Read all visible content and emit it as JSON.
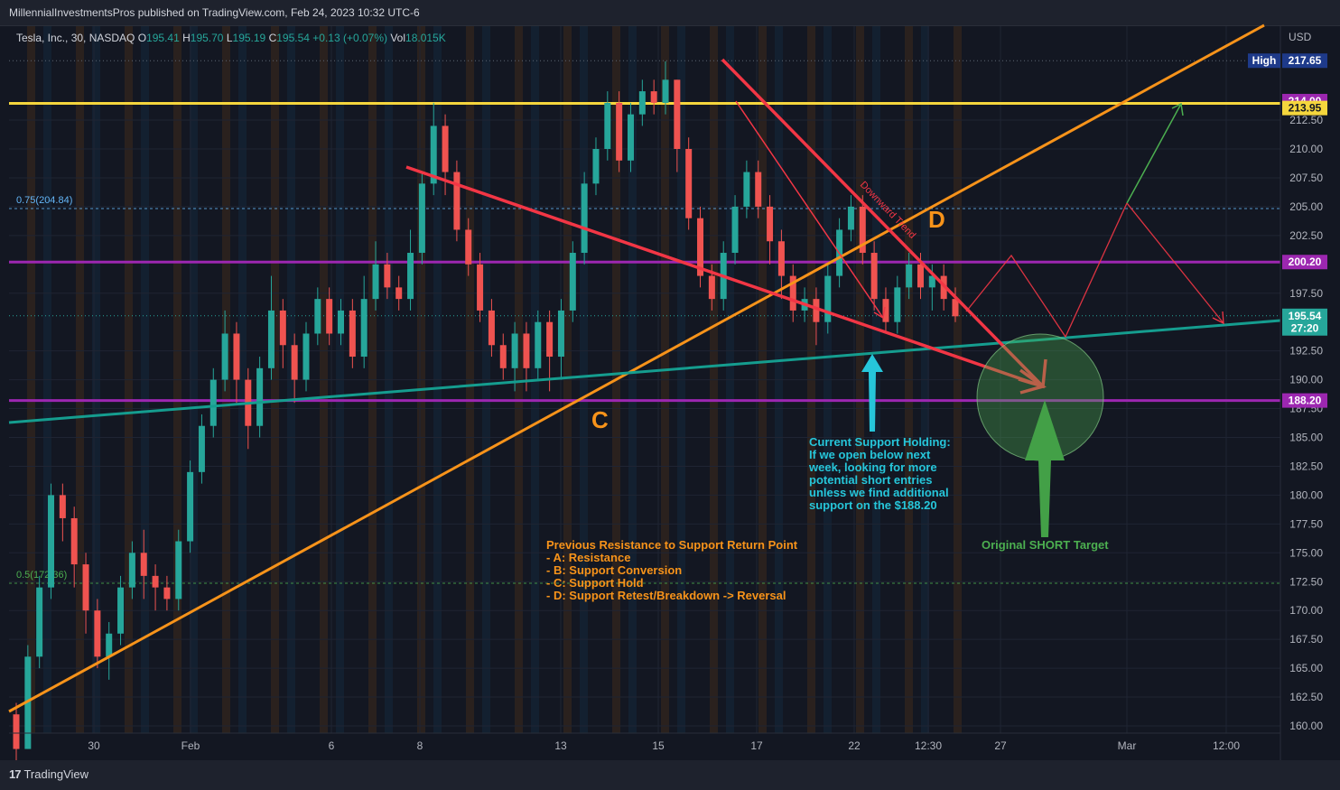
{
  "header": {
    "published": "MillennialInvestmentsPros published on TradingView.com, Feb 24, 2023 10:32 UTC-6"
  },
  "footer": {
    "brand": "TradingView"
  },
  "colors": {
    "background": "#131722",
    "up": "#26a69a",
    "down": "#ef5350",
    "resistance_yellow": "#f5d63d",
    "support_purple": "#9c27b0",
    "trend_orange": "#f7931a",
    "downtrend_red": "#f23645",
    "teal_support": "#159d8f",
    "target_green": "#4caf50",
    "fib_blue": "#64b5f6"
  },
  "chart_data": {
    "type": "candlestick",
    "symbol_line": {
      "name": "Tesla, Inc., 30, NASDAQ",
      "o_label": "O",
      "o": "195.41",
      "h_label": "H",
      "h": "195.70",
      "l_label": "L",
      "l": "195.19",
      "c_label": "C",
      "c": "195.54",
      "change": "+0.13 (+0.07%)",
      "vol_label": "Vol",
      "vol": "18.015K"
    },
    "currency": "USD",
    "y_range": [
      159.5,
      220.5
    ],
    "y_ticks": [
      212.5,
      210.0,
      207.5,
      205.0,
      202.5,
      197.5,
      192.5,
      190.0,
      187.5,
      185.0,
      182.5,
      180.0,
      177.5,
      175.0,
      172.5,
      170.0,
      167.5,
      165.0,
      162.5,
      160.0
    ],
    "x_ticks": [
      "30",
      "Feb",
      "6",
      "8",
      "13",
      "15",
      "17",
      "22",
      "12:30",
      "27",
      "Mar",
      "12:00"
    ],
    "price_tags": [
      {
        "label": "High",
        "value": "217.65",
        "price": 217.65,
        "bg": "#1e3a8a",
        "fg": "#ffffff"
      },
      {
        "value": "214.00",
        "price": 214.15,
        "bg": "#9c27b0",
        "fg": "#ffffff"
      },
      {
        "value": "213.95",
        "price": 213.55,
        "bg": "#f5d63d",
        "fg": "#131722"
      },
      {
        "value": "200.20",
        "price": 200.2,
        "bg": "#9c27b0",
        "fg": "#ffffff"
      },
      {
        "value": "195.54",
        "price": 195.54,
        "bg": "#26a69a",
        "fg": "#ffffff"
      },
      {
        "value": "27:20",
        "price": 194.45,
        "bg": "#26a69a",
        "fg": "#ffffff"
      },
      {
        "value": "188.20",
        "price": 188.2,
        "bg": "#9c27b0",
        "fg": "#ffffff"
      }
    ],
    "horizontal_levels": [
      {
        "name": "resistance",
        "price": 213.95,
        "color": "#f5d63d"
      },
      {
        "name": "support-upper",
        "price": 200.2,
        "color": "#9c27b0"
      },
      {
        "name": "support-lower",
        "price": 188.2,
        "color": "#9c27b0"
      }
    ],
    "fib_levels": [
      {
        "label": "0.75(204.84)",
        "price": 204.84
      },
      {
        "label": "0.5(172.36)",
        "price": 172.36
      }
    ],
    "ohlc_approx": [
      [
        161,
        158,
        162,
        157
      ],
      [
        158,
        166,
        167,
        158
      ],
      [
        166,
        172,
        173,
        165
      ],
      [
        172,
        180,
        181,
        171
      ],
      [
        180,
        178,
        181,
        176
      ],
      [
        178,
        174,
        179,
        172
      ],
      [
        174,
        170,
        175,
        168
      ],
      [
        170,
        166,
        171,
        165
      ],
      [
        166,
        168,
        169,
        164
      ],
      [
        168,
        172,
        173,
        167
      ],
      [
        172,
        175,
        176,
        171
      ],
      [
        175,
        173,
        177,
        171
      ],
      [
        173,
        172,
        174,
        170
      ],
      [
        172,
        171,
        173,
        170
      ],
      [
        171,
        176,
        177,
        170
      ],
      [
        176,
        182,
        183,
        175
      ],
      [
        182,
        186,
        187,
        181
      ],
      [
        186,
        190,
        191,
        185
      ],
      [
        190,
        194,
        196,
        189
      ],
      [
        194,
        190,
        195,
        188
      ],
      [
        190,
        186,
        191,
        184
      ],
      [
        186,
        191,
        192,
        185
      ],
      [
        191,
        196,
        199,
        190
      ],
      [
        196,
        193,
        197,
        191
      ],
      [
        193,
        190,
        194,
        188
      ],
      [
        190,
        194,
        195,
        189
      ],
      [
        194,
        197,
        198,
        193
      ],
      [
        197,
        194,
        198,
        193
      ],
      [
        194,
        196,
        197,
        193
      ],
      [
        196,
        192,
        197,
        191
      ],
      [
        192,
        197,
        199,
        191
      ],
      [
        197,
        200,
        202,
        196
      ],
      [
        200,
        198,
        201,
        197
      ],
      [
        198,
        197,
        199,
        196
      ],
      [
        197,
        201,
        203,
        196
      ],
      [
        201,
        207,
        208,
        200
      ],
      [
        207,
        212,
        214,
        206
      ],
      [
        212,
        208,
        213,
        206
      ],
      [
        208,
        203,
        209,
        202
      ],
      [
        203,
        200,
        204,
        199
      ],
      [
        200,
        196,
        201,
        195
      ],
      [
        196,
        193,
        197,
        192
      ],
      [
        193,
        191,
        194,
        190
      ],
      [
        191,
        194,
        195,
        189
      ],
      [
        194,
        191,
        195,
        189
      ],
      [
        191,
        195,
        196,
        190
      ],
      [
        195,
        192,
        196,
        189
      ],
      [
        192,
        196,
        197,
        190
      ],
      [
        196,
        201,
        202,
        195
      ],
      [
        201,
        207,
        208,
        200
      ],
      [
        207,
        210,
        211,
        206
      ],
      [
        210,
        214,
        215,
        209
      ],
      [
        214,
        209,
        215,
        208
      ],
      [
        209,
        213,
        214,
        208
      ],
      [
        213,
        215,
        216,
        212
      ],
      [
        215,
        214,
        216,
        213
      ],
      [
        214,
        216,
        217.6,
        213
      ],
      [
        216,
        210,
        216,
        208
      ],
      [
        210,
        204,
        211,
        203
      ],
      [
        204,
        199,
        205,
        198
      ],
      [
        199,
        197,
        200,
        196
      ],
      [
        197,
        201,
        202,
        196
      ],
      [
        201,
        205,
        206,
        200
      ],
      [
        205,
        208,
        209,
        204
      ],
      [
        208,
        205,
        209,
        204
      ],
      [
        205,
        202,
        206,
        200
      ],
      [
        202,
        199,
        203,
        197
      ],
      [
        199,
        196,
        200,
        195
      ],
      [
        196,
        197,
        198,
        195
      ],
      [
        197,
        195,
        198,
        193
      ],
      [
        195,
        199,
        200,
        194
      ],
      [
        199,
        203,
        204,
        198
      ],
      [
        203,
        205,
        206,
        202
      ],
      [
        205,
        201,
        206,
        200
      ],
      [
        201,
        197,
        202,
        196
      ],
      [
        197,
        195,
        198,
        194
      ],
      [
        195,
        198,
        199,
        194
      ],
      [
        198,
        200,
        201,
        197
      ],
      [
        200,
        198,
        201,
        197
      ],
      [
        198,
        199,
        200,
        196
      ],
      [
        199,
        197,
        200,
        196
      ],
      [
        197,
        195.5,
        198,
        195
      ]
    ]
  },
  "annotations": {
    "label_c": "C",
    "label_d": "D",
    "downward_trend": "Downward Trend",
    "support_note": [
      "Current Support Holding:",
      "If we open below next",
      "week, looking for more",
      "potential short entries",
      "unless we find additional",
      "support on the $188.20"
    ],
    "resistance_note": [
      "Previous Resistance to Support Return Point",
      "- A: Resistance",
      "- B: Support Conversion",
      "- C: Support Hold",
      "- D: Support Retest/Breakdown -> Reversal"
    ],
    "target_note": "Original SHORT Target"
  }
}
